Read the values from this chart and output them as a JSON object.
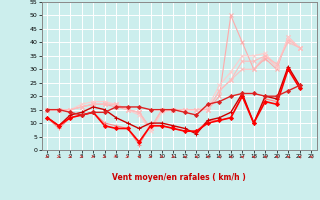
{
  "xlabel": "Vent moyen/en rafales ( km/h )",
  "xlim": [
    -0.5,
    23.5
  ],
  "ylim": [
    0,
    55
  ],
  "yticks": [
    0,
    5,
    10,
    15,
    20,
    25,
    30,
    35,
    40,
    45,
    50,
    55
  ],
  "xticks": [
    0,
    1,
    2,
    3,
    4,
    5,
    6,
    7,
    8,
    9,
    10,
    11,
    12,
    13,
    14,
    15,
    16,
    17,
    18,
    19,
    20,
    21,
    22,
    23
  ],
  "background_color": "#cceeed",
  "grid_color": "#ffffff",
  "series": [
    {
      "color": "#ffaaaa",
      "alpha": 1.0,
      "linewidth": 0.8,
      "marker": "x",
      "markersize": 2.5,
      "y": [
        15,
        15,
        15,
        16,
        17,
        17,
        16,
        15,
        14,
        8,
        15,
        15,
        15,
        15,
        15,
        20,
        50,
        40,
        30,
        34,
        30,
        42,
        38,
        null
      ]
    },
    {
      "color": "#ffbbbb",
      "alpha": 1.0,
      "linewidth": 0.8,
      "marker": "x",
      "markersize": 2.5,
      "y": [
        15,
        15,
        15,
        16,
        17,
        17,
        17,
        15,
        14,
        8,
        15,
        15,
        15,
        15,
        15,
        22,
        26,
        33,
        33,
        35,
        31,
        41,
        38,
        null
      ]
    },
    {
      "color": "#ffcccc",
      "alpha": 1.0,
      "linewidth": 0.8,
      "marker": "x",
      "markersize": 2.5,
      "y": [
        15,
        15,
        15,
        17,
        18,
        18,
        17,
        15,
        13,
        7,
        14,
        15,
        15,
        15,
        16,
        24,
        29,
        35,
        35,
        36,
        31,
        42,
        38,
        null
      ]
    },
    {
      "color": "#ffbbbb",
      "alpha": 0.9,
      "linewidth": 0.8,
      "marker": "x",
      "markersize": 2.5,
      "y": [
        15,
        15,
        15,
        16,
        17,
        17,
        17,
        15,
        14,
        8,
        15,
        15,
        15,
        15,
        15,
        22,
        26,
        30,
        30,
        35,
        32,
        40,
        38,
        null
      ]
    },
    {
      "color": "#ff8888",
      "alpha": 1.0,
      "linewidth": 0.8,
      "marker": "+",
      "markersize": 3,
      "y": [
        12,
        8,
        12,
        13,
        14,
        10,
        9,
        8,
        2,
        9,
        9,
        8,
        7,
        7,
        11,
        11,
        12,
        20,
        10,
        19,
        18,
        30,
        24,
        null
      ]
    },
    {
      "color": "#cc0000",
      "alpha": 1.0,
      "linewidth": 1.0,
      "marker": "+",
      "markersize": 3,
      "y": [
        12,
        9,
        13,
        14,
        16,
        15,
        12,
        10,
        8,
        10,
        10,
        9,
        8,
        6,
        11,
        12,
        14,
        21,
        10,
        20,
        19,
        31,
        24,
        null
      ]
    },
    {
      "color": "#ff0000",
      "alpha": 1.0,
      "linewidth": 1.2,
      "marker": "D",
      "markersize": 2,
      "y": [
        12,
        9,
        12,
        13,
        14,
        9,
        8,
        8,
        3,
        9,
        9,
        8,
        7,
        7,
        10,
        11,
        12,
        20,
        10,
        18,
        17,
        30,
        23,
        null
      ]
    },
    {
      "color": "#dd2222",
      "alpha": 1.0,
      "linewidth": 1.0,
      "marker": "D",
      "markersize": 2,
      "y": [
        15,
        15,
        14,
        13,
        14,
        14,
        16,
        16,
        16,
        15,
        15,
        15,
        14,
        13,
        17,
        18,
        20,
        21,
        21,
        20,
        20,
        22,
        24,
        null
      ]
    }
  ],
  "arrow_color": "#dd2222",
  "arrow_directions": [
    45,
    45,
    45,
    45,
    45,
    45,
    60,
    45,
    225,
    45,
    45,
    45,
    225,
    225,
    225,
    225,
    225,
    225,
    225,
    225,
    225,
    225,
    225,
    225
  ]
}
